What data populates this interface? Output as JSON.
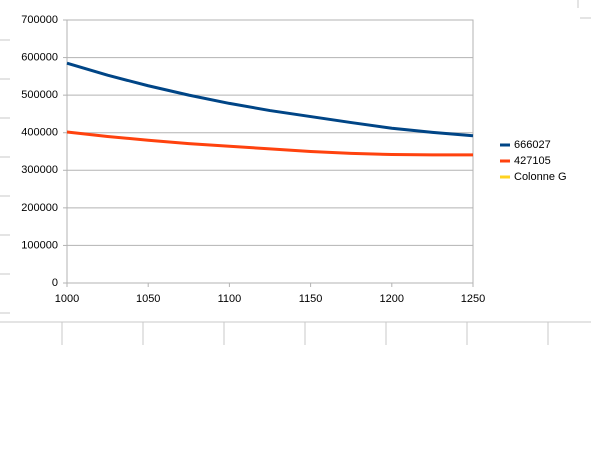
{
  "chart_data": {
    "type": "line",
    "x": [
      1000,
      1025,
      1050,
      1075,
      1100,
      1125,
      1150,
      1175,
      1200,
      1225,
      1250
    ],
    "series": [
      {
        "name": "666027",
        "color": "#004586",
        "values": [
          585000,
          553000,
          525000,
          500000,
          478000,
          459000,
          443000,
          427000,
          412000,
          401000,
          392000
        ]
      },
      {
        "name": "427105",
        "color": "#ff420e",
        "values": [
          402000,
          390000,
          380000,
          371000,
          364000,
          357000,
          350000,
          345000,
          342000,
          341000,
          341000
        ]
      },
      {
        "name": "Colonne G",
        "color": "#ffd320",
        "values": [
          null,
          null,
          null,
          null,
          null,
          null,
          null,
          null,
          null,
          null,
          null
        ]
      }
    ],
    "xlim": [
      1000,
      1250
    ],
    "xticks": [
      1000,
      1050,
      1100,
      1150,
      1200,
      1250
    ],
    "ylim": [
      0,
      700000
    ],
    "yticks": [
      0,
      100000,
      200000,
      300000,
      400000,
      500000,
      600000,
      700000
    ],
    "grid": true,
    "legend": "right"
  }
}
